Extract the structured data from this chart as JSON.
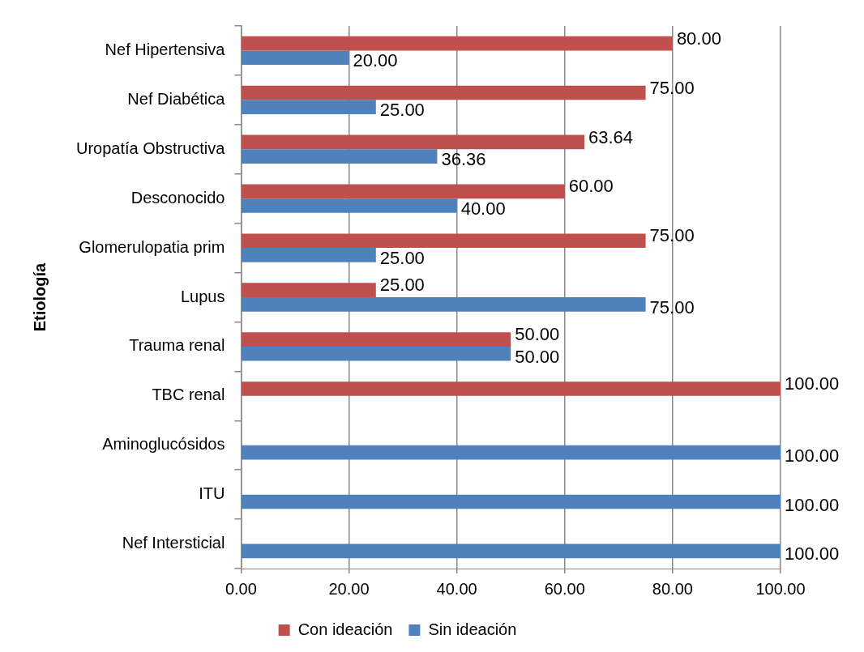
{
  "chart_data": {
    "type": "bar",
    "orientation": "horizontal",
    "ylabel": "Etiología",
    "categories": [
      "Nef Hipertensiva",
      "Nef Diabética",
      "Uropatía Obstructiva",
      "Desconocido",
      "Glomerulopatia prim",
      "Lupus",
      "Trauma renal",
      "TBC renal",
      "Aminoglucósidos",
      "ITU",
      "Nef Intersticial"
    ],
    "series": [
      {
        "name": "Con ideación",
        "color": "#c0504d",
        "values": [
          80,
          75,
          63.64,
          60,
          75,
          25,
          50,
          100,
          null,
          null,
          null
        ],
        "value_labels": [
          "80.00",
          "75.00",
          "63.64",
          "60.00",
          "75.00",
          "25.00",
          "50.00",
          "100.00",
          null,
          null,
          null
        ]
      },
      {
        "name": "Sin ideación",
        "color": "#4f81bd",
        "values": [
          20,
          25,
          36.36,
          40,
          25,
          75,
          50,
          null,
          100,
          100,
          100
        ],
        "value_labels": [
          "20.00",
          "25.00",
          "36.36",
          "40.00",
          "25.00",
          "75.00",
          "50.00",
          null,
          "100.00",
          "100.00",
          "100.00"
        ]
      }
    ],
    "xlim": [
      0,
      100
    ],
    "xticks": [
      {
        "value": 0,
        "label": "0.00"
      },
      {
        "value": 20,
        "label": "20.00"
      },
      {
        "value": 40,
        "label": "40.00"
      },
      {
        "value": 60,
        "label": "60.00"
      },
      {
        "value": 80,
        "label": "80.00"
      },
      {
        "value": 100,
        "label": "100.00"
      }
    ],
    "grid": "x",
    "legend": "bottom"
  }
}
